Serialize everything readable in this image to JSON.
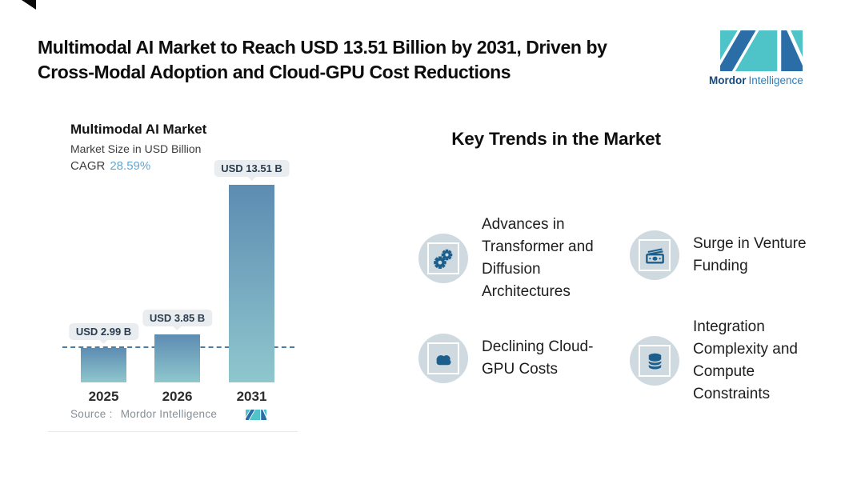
{
  "header": {
    "title_line1": "Multimodal AI Market to Reach USD 13.51 Billion by 2031, Driven by",
    "title_line2": "Cross-Modal Adoption and Cloud-GPU Cost Reductions"
  },
  "brand": {
    "name_bold": "Mordor",
    "name_light": "Intelligence"
  },
  "chart_data": {
    "type": "bar",
    "title": "Multimodal AI Market",
    "subtitle": "Market Size in USD Billion",
    "cagr_label": "CAGR",
    "cagr_value": "28.59%",
    "unit": "USD Billion",
    "categories": [
      "2025",
      "2026",
      "2031"
    ],
    "values": [
      2.99,
      3.85,
      13.51
    ],
    "bar_labels": [
      "USD 2.99 B",
      "USD 3.85 B",
      "USD 13.51 B"
    ],
    "reference_line": {
      "style": "dashed",
      "at_value": 3.1
    },
    "source_label": "Source :",
    "source_value": "Mordor Intelligence"
  },
  "trends": {
    "heading": "Key Trends in the Market",
    "items": [
      {
        "icon": "gears-icon",
        "label": "Advances in Transformer and Diffusion Architectures"
      },
      {
        "icon": "banknotes-icon",
        "label": "Surge in Venture Funding"
      },
      {
        "icon": "cloud-icon",
        "label": "Declining Cloud-GPU Costs"
      },
      {
        "icon": "database-icon",
        "label": "Integration Complexity and Compute Constraints"
      }
    ]
  },
  "colors": {
    "accent_teal": "#4fc4c8",
    "accent_blue": "#2b6da6",
    "logo_navy": "#17497a",
    "logo_blue": "#2f7cb6",
    "icon_blue": "#1d5f8c",
    "badge_bg": "#cfd9e0",
    "bar_gradient_top": "#5d8cb2",
    "bar_gradient_bottom": "#8fc7cd",
    "dashed_line": "#4b7ea4",
    "pill_bg": "#e9edf0"
  }
}
